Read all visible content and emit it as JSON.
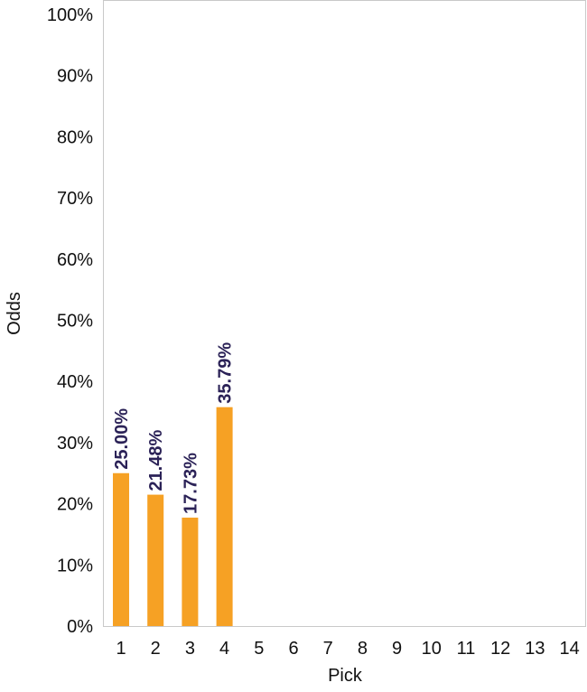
{
  "chart_data": {
    "type": "bar",
    "title": "",
    "xlabel": "Pick",
    "ylabel": "Odds",
    "categories": [
      "1",
      "2",
      "3",
      "4",
      "5",
      "6",
      "7",
      "8",
      "9",
      "10",
      "11",
      "12",
      "13",
      "14"
    ],
    "values": [
      25.0,
      21.48,
      17.73,
      35.79,
      0,
      0,
      0,
      0,
      0,
      0,
      0,
      0,
      0,
      0
    ],
    "data_labels": [
      "25.00%",
      "21.48%",
      "17.73%",
      "35.79%",
      "",
      "",
      "",
      "",
      "",
      "",
      "",
      "",
      "",
      ""
    ],
    "y_ticks": [
      "0%",
      "10%",
      "20%",
      "30%",
      "40%",
      "50%",
      "60%",
      "70%",
      "80%",
      "90%",
      "100%"
    ],
    "ylim": [
      0,
      100
    ],
    "grid": false,
    "bar_color": "#f6a124",
    "label_color": "#2b2257"
  }
}
